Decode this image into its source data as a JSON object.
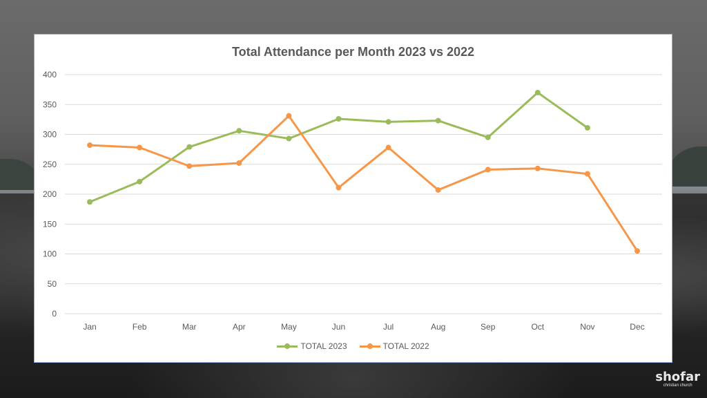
{
  "colors": {
    "series_2023": "#9bbb59",
    "series_2022": "#f79646",
    "gridline": "#d9d9d9",
    "text": "#595959"
  },
  "logo": {
    "main": "shofar",
    "sub": "christian church"
  },
  "chart_data": {
    "type": "line",
    "title": "Total Attendance per Month 2023 vs 2022",
    "xlabel": "",
    "ylabel": "",
    "categories": [
      "Jan",
      "Feb",
      "Mar",
      "Apr",
      "May",
      "Jun",
      "Jul",
      "Aug",
      "Sep",
      "Oct",
      "Nov",
      "Dec"
    ],
    "ylim": [
      0,
      400
    ],
    "yticks": [
      0,
      50,
      100,
      150,
      200,
      250,
      300,
      350,
      400
    ],
    "grid": true,
    "legend_position": "bottom",
    "series": [
      {
        "name": "TOTAL 2023",
        "color": "#9bbb59",
        "values": [
          187,
          221,
          279,
          306,
          293,
          326,
          321,
          323,
          295,
          370,
          311,
          null
        ]
      },
      {
        "name": "TOTAL 2022",
        "color": "#f79646",
        "values": [
          282,
          278,
          247,
          252,
          331,
          211,
          278,
          207,
          241,
          243,
          234,
          105
        ]
      }
    ]
  }
}
